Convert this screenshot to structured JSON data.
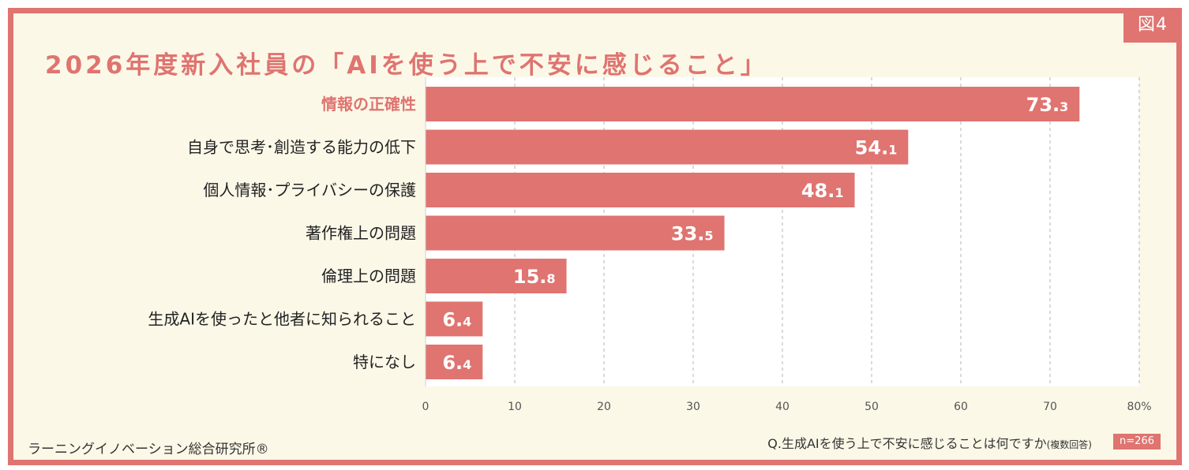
{
  "figure_label": "図4",
  "title": "2026年度新入社員の「AIを使う上で不安に感じること」",
  "colors": {
    "bar": "#df7470",
    "highlight_text": "#df7470",
    "label_text": "#222222",
    "value_text": "#ffffff",
    "plot_bg": "#ffffff",
    "frame": "#df7470"
  },
  "chart_data": {
    "type": "bar",
    "orientation": "horizontal",
    "categories": [
      "情報の正確性",
      "自身で思考･創造する能力の低下",
      "個人情報･プライバシーの保護",
      "著作権上の問題",
      "倫理上の問題",
      "生成AIを使ったと他者に知られること",
      "特になし"
    ],
    "values": [
      73.3,
      54.1,
      48.1,
      33.5,
      15.8,
      6.4,
      6.4
    ],
    "value_labels": [
      "73.3",
      "54.1",
      "48.1",
      "33.5",
      "15.8",
      "6.4",
      "6.4"
    ],
    "highlighted_category": "情報の正確性",
    "xlim": [
      0,
      80
    ],
    "xticks": [
      0,
      10,
      20,
      30,
      40,
      50,
      60,
      70,
      80
    ],
    "xtick_labels": [
      "0",
      "10",
      "20",
      "30",
      "40",
      "50",
      "60",
      "70",
      "80%"
    ],
    "grid": true
  },
  "question": "Q.生成AIを使う上で不安に感じることは何ですか",
  "question_note": "(複数回答)",
  "sample_size": "n=266",
  "credit": "ラーニングイノベーション総合研究所®"
}
